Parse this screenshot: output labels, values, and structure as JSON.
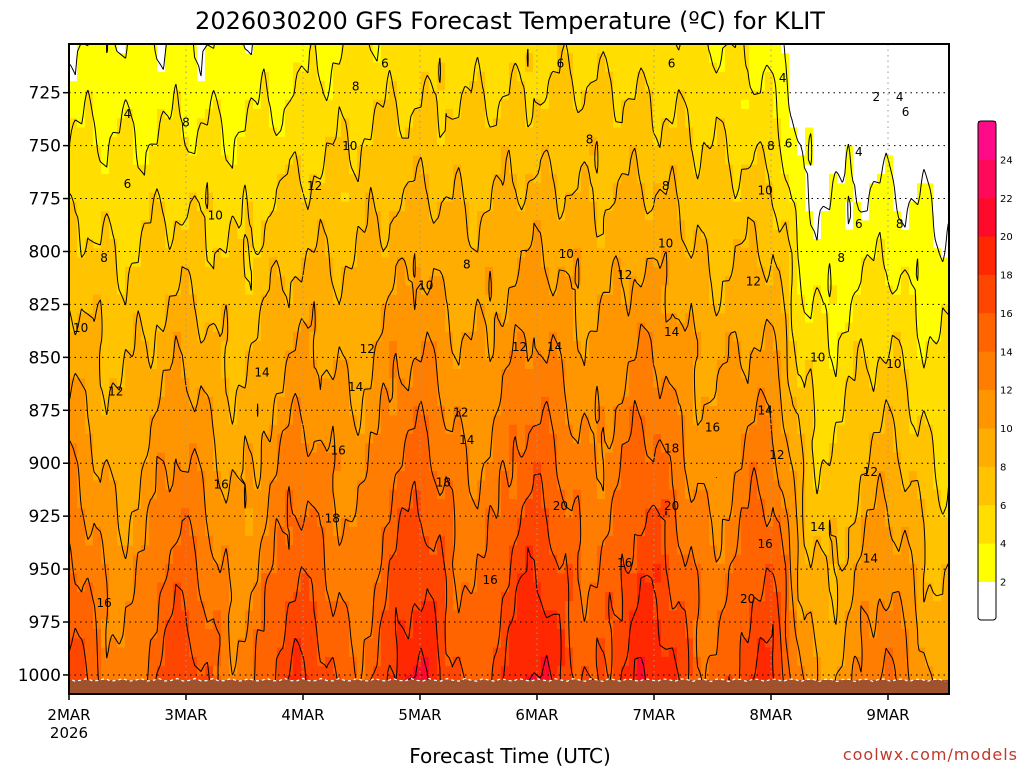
{
  "chart_data": {
    "type": "heatmap",
    "title": "2026030200 GFS Forecast Temperature (ºC) for KLIT",
    "xlabel": "Forecast Time (UTC)",
    "ylabel": "",
    "x_ticks": [
      "2MAR",
      "3MAR",
      "4MAR",
      "5MAR",
      "6MAR",
      "7MAR",
      "8MAR",
      "9MAR"
    ],
    "x_sublabel": "2026",
    "x_range_days": [
      0,
      7.5
    ],
    "y_ticks": [
      725,
      750,
      775,
      800,
      825,
      850,
      875,
      900,
      925,
      950,
      975,
      1000
    ],
    "y_range_hpa": [
      702,
      1009
    ],
    "colorbar": {
      "levels": [
        2,
        4,
        6,
        8,
        10,
        12,
        14,
        16,
        18,
        20,
        22,
        24
      ],
      "labels": [
        "2",
        "4",
        "6",
        "8",
        "10",
        "12",
        "14",
        "16",
        "18",
        "20",
        "22",
        "24"
      ],
      "colors": [
        "#ffffff",
        "#ffff00",
        "#ffde00",
        "#ffc300",
        "#ffad00",
        "#ff9600",
        "#ff7d00",
        "#ff6400",
        "#ff4600",
        "#ff2800",
        "#ff0a2a",
        "#ff0a5a",
        "#ff0a88"
      ]
    },
    "contour_labels": [
      {
        "value": "4",
        "day": 0.5,
        "p": 737
      },
      {
        "value": "6",
        "day": 0.5,
        "p": 770
      },
      {
        "value": "8",
        "day": 0.3,
        "p": 805
      },
      {
        "value": "10",
        "day": 0.1,
        "p": 838
      },
      {
        "value": "12",
        "day": 0.4,
        "p": 868
      },
      {
        "value": "16",
        "day": 0.3,
        "p": 968
      },
      {
        "value": "8",
        "day": 1.0,
        "p": 741
      },
      {
        "value": "10",
        "day": 1.25,
        "p": 785
      },
      {
        "value": "16",
        "day": 1.3,
        "p": 912
      },
      {
        "value": "14",
        "day": 1.65,
        "p": 859
      },
      {
        "value": "6",
        "day": 2.7,
        "p": 713
      },
      {
        "value": "8",
        "day": 2.45,
        "p": 724
      },
      {
        "value": "10",
        "day": 2.4,
        "p": 752
      },
      {
        "value": "12",
        "day": 2.1,
        "p": 771
      },
      {
        "value": "14",
        "day": 2.45,
        "p": 866
      },
      {
        "value": "16",
        "day": 2.3,
        "p": 896
      },
      {
        "value": "18",
        "day": 2.25,
        "p": 928
      },
      {
        "value": "12",
        "day": 2.55,
        "p": 848
      },
      {
        "value": "10",
        "day": 3.05,
        "p": 818
      },
      {
        "value": "18",
        "day": 3.2,
        "p": 911
      },
      {
        "value": "12",
        "day": 3.35,
        "p": 878
      },
      {
        "value": "14",
        "day": 3.4,
        "p": 891
      },
      {
        "value": "8",
        "day": 3.4,
        "p": 808
      },
      {
        "value": "16",
        "day": 3.6,
        "p": 957
      },
      {
        "value": "6",
        "day": 4.2,
        "p": 713
      },
      {
        "value": "8",
        "day": 4.45,
        "p": 749
      },
      {
        "value": "10",
        "day": 4.25,
        "p": 803
      },
      {
        "value": "12",
        "day": 3.85,
        "p": 847
      },
      {
        "value": "14",
        "day": 4.15,
        "p": 847
      },
      {
        "value": "20",
        "day": 4.2,
        "p": 922
      },
      {
        "value": "16",
        "day": 4.75,
        "p": 949
      },
      {
        "value": "6",
        "day": 5.15,
        "p": 713
      },
      {
        "value": "8",
        "day": 5.1,
        "p": 771
      },
      {
        "value": "10",
        "day": 5.1,
        "p": 798
      },
      {
        "value": "12",
        "day": 4.75,
        "p": 813
      },
      {
        "value": "14",
        "day": 5.15,
        "p": 840
      },
      {
        "value": "18",
        "day": 5.15,
        "p": 895
      },
      {
        "value": "20",
        "day": 5.15,
        "p": 922
      },
      {
        "value": "16",
        "day": 5.5,
        "p": 885
      },
      {
        "value": "14",
        "day": 5.95,
        "p": 877
      },
      {
        "value": "12",
        "day": 5.85,
        "p": 816
      },
      {
        "value": "16",
        "day": 5.95,
        "p": 940
      },
      {
        "value": "20",
        "day": 5.8,
        "p": 966
      },
      {
        "value": "10",
        "day": 5.95,
        "p": 773
      },
      {
        "value": "8",
        "day": 6.0,
        "p": 752
      },
      {
        "value": "6",
        "day": 6.15,
        "p": 751
      },
      {
        "value": "4",
        "day": 6.1,
        "p": 720
      },
      {
        "value": "12",
        "day": 6.05,
        "p": 898
      },
      {
        "value": "2",
        "day": 6.9,
        "p": 729
      },
      {
        "value": "4",
        "day": 7.1,
        "p": 729
      },
      {
        "value": "6",
        "day": 7.15,
        "p": 736
      },
      {
        "value": "4",
        "day": 6.75,
        "p": 755
      },
      {
        "value": "6",
        "day": 6.75,
        "p": 789
      },
      {
        "value": "8",
        "day": 7.1,
        "p": 789
      },
      {
        "value": "8",
        "day": 6.6,
        "p": 805
      },
      {
        "value": "10",
        "day": 6.4,
        "p": 852
      },
      {
        "value": "10",
        "day": 7.05,
        "p": 855
      },
      {
        "value": "12",
        "day": 6.85,
        "p": 906
      },
      {
        "value": "14",
        "day": 6.4,
        "p": 932
      },
      {
        "value": "14",
        "day": 6.85,
        "p": 947
      }
    ]
  },
  "credit": "coolwx.com/models"
}
